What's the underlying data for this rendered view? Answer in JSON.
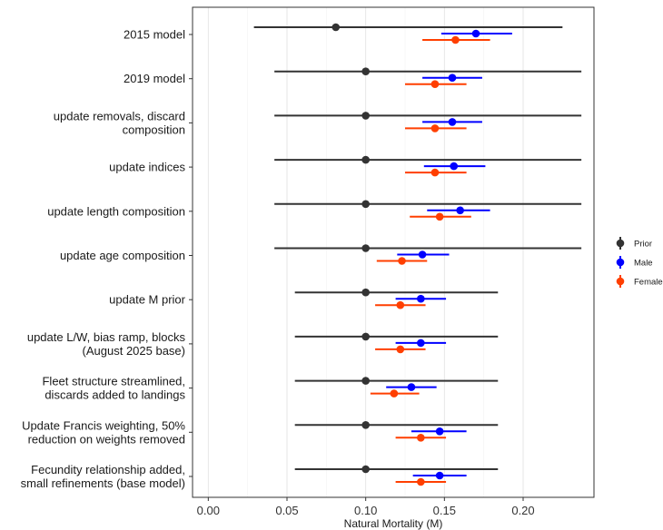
{
  "chart_data": {
    "type": "scatter",
    "title": "",
    "xlabel": "Natural Mortality (M)",
    "ylabel": "",
    "xlim": [
      -0.01,
      0.245
    ],
    "x_ticks": [
      0.0,
      0.05,
      0.1,
      0.15,
      0.2
    ],
    "x_tick_labels": [
      "0.00",
      "0.05",
      "0.10",
      "0.15",
      "0.20"
    ],
    "grid": "vertical major and minor",
    "legend_position": "right",
    "categories": [
      [
        "2015 model"
      ],
      [
        "2019 model"
      ],
      [
        "update removals, discard",
        "composition"
      ],
      [
        "update indices"
      ],
      [
        "update length composition"
      ],
      [
        "update age composition"
      ],
      [
        "update M prior"
      ],
      [
        "update L/W, bias ramp, blocks",
        "(August 2025 base)"
      ],
      [
        "Fleet structure streamlined,",
        "discards added to landings"
      ],
      [
        "Update Francis weighting, 50%",
        "reduction on weights removed"
      ],
      [
        "Fecundity relationship added,",
        "small refinements (base model)"
      ]
    ],
    "series": [
      {
        "name": "Prior",
        "color": "#333333",
        "estimate": [
          0.081,
          0.1,
          0.1,
          0.1,
          0.1,
          0.1,
          0.1,
          0.1,
          0.1,
          0.1,
          0.1
        ],
        "lower": [
          0.029,
          0.042,
          0.042,
          0.042,
          0.042,
          0.042,
          0.055,
          0.055,
          0.055,
          0.055,
          0.055
        ],
        "upper": [
          0.225,
          0.237,
          0.237,
          0.237,
          0.237,
          0.237,
          0.184,
          0.184,
          0.184,
          0.184,
          0.184
        ]
      },
      {
        "name": "Male",
        "color": "#0000ff",
        "estimate": [
          0.17,
          0.155,
          0.155,
          0.156,
          0.16,
          0.136,
          0.135,
          0.135,
          0.129,
          0.147,
          0.147
        ],
        "lower": [
          0.148,
          0.136,
          0.136,
          0.137,
          0.139,
          0.12,
          0.119,
          0.119,
          0.113,
          0.129,
          0.13
        ],
        "upper": [
          0.193,
          0.174,
          0.174,
          0.176,
          0.179,
          0.153,
          0.151,
          0.151,
          0.145,
          0.164,
          0.164
        ]
      },
      {
        "name": "Female",
        "color": "#ff3f00",
        "estimate": [
          0.157,
          0.144,
          0.144,
          0.144,
          0.147,
          0.123,
          0.122,
          0.122,
          0.118,
          0.135,
          0.135
        ],
        "lower": [
          0.136,
          0.125,
          0.125,
          0.125,
          0.128,
          0.107,
          0.106,
          0.106,
          0.103,
          0.119,
          0.119
        ],
        "upper": [
          0.179,
          0.164,
          0.164,
          0.164,
          0.167,
          0.139,
          0.138,
          0.138,
          0.134,
          0.151,
          0.151
        ]
      }
    ]
  }
}
